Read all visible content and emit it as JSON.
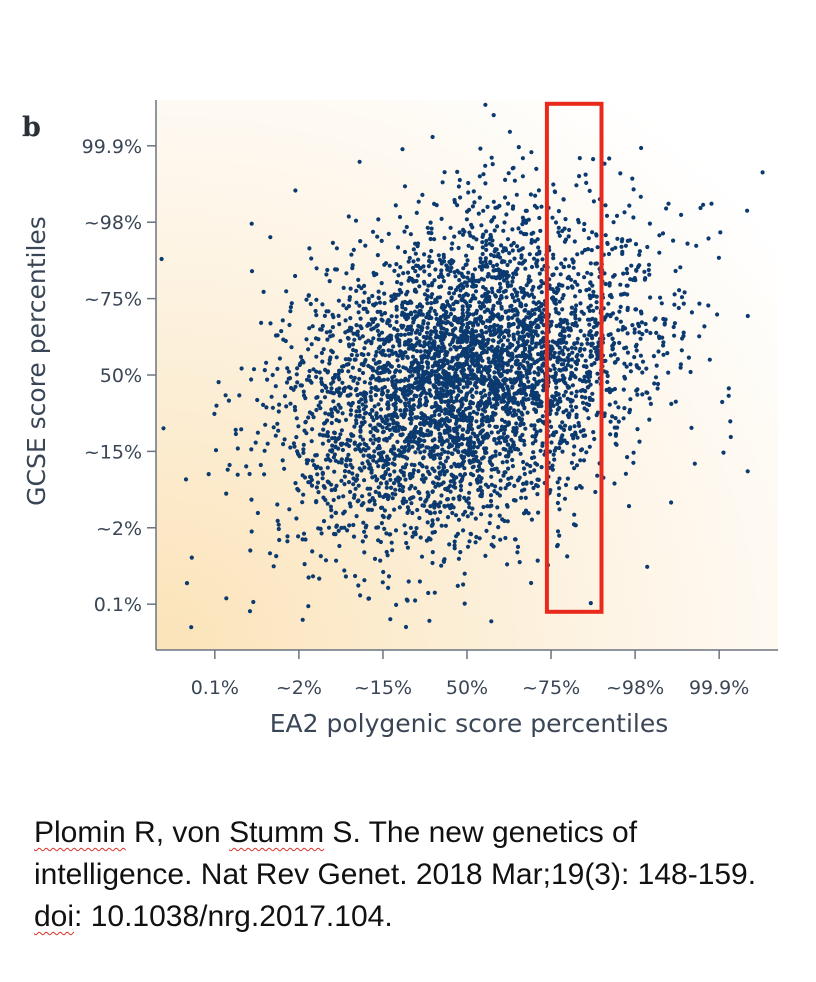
{
  "chart_data": {
    "type": "scatter",
    "panel_label": "b",
    "title": "",
    "xlabel": "EA2 polygenic score percentiles",
    "ylabel": "GCSE score percentiles",
    "x_tick_labels": [
      "0.1%",
      "~2%",
      "~15%",
      "50%",
      "~75%",
      "~98%",
      "99.9%"
    ],
    "y_tick_labels": [
      "99.9%",
      "~98%",
      "~75%",
      "50%",
      "~15%",
      "~2%",
      "0.1%"
    ],
    "x_tick_z": [
      -3,
      -2,
      -1,
      0,
      1,
      2,
      3
    ],
    "y_tick_z": [
      3,
      2,
      1,
      0,
      -1,
      -2,
      -3
    ],
    "xlim_z": [
      -3.7,
      3.7
    ],
    "ylim_z": [
      -3.6,
      3.6
    ],
    "correlation": 0.3,
    "n_points": 4500,
    "highlight": {
      "x_range_z": [
        0.95,
        1.6
      ],
      "y_range_z": [
        -3.1,
        3.55
      ],
      "label": ""
    },
    "grid": false,
    "legend": "none"
  },
  "colors": {
    "point": "#0b3a70",
    "axis": "#6a7480",
    "text": "#3a4656",
    "highlight": "#e8291c",
    "background_tint": "#fbe8c6"
  },
  "citation": {
    "part1": "Plomin",
    "part2": " R, von ",
    "part3": "Stumm",
    "part4": " S. The new genetics of intelligence. Nat Rev Genet. 2018 Mar;19(3): 148-159. ",
    "part5": "doi",
    "part6": ": 10.1038/nrg.2017.104."
  }
}
